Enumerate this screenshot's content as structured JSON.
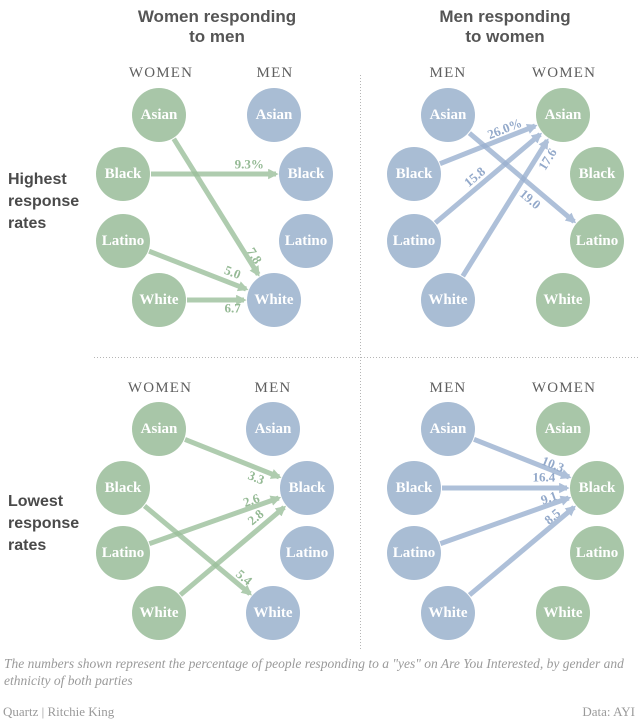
{
  "page": {
    "titles": [
      {
        "lines": [
          "Women responding",
          "to men"
        ]
      },
      {
        "lines": [
          "Men responding",
          "to women"
        ]
      }
    ],
    "row_labels": [
      {
        "lines": [
          "Highest",
          "response",
          "rates"
        ]
      },
      {
        "lines": [
          "Lowest",
          "response",
          "rates"
        ]
      }
    ],
    "footnote": "The numbers shown represent the percentage of people responding to a \"yes\" on Are You Interested, by gender and ethnicity of both parties",
    "credit_left": "Quartz | Ritchie King",
    "credit_right": "Data: AYI"
  },
  "ethnicities": [
    "Asian",
    "Black",
    "Latino",
    "White"
  ],
  "colors": {
    "women_circle": "#a8c6a8",
    "men_circle": "#a9bdd4",
    "women_arrow": "#9cc09c",
    "men_arrow": "#9bb1d0",
    "women_value_text": "#95ba95",
    "men_value_text": "#93a9ca",
    "circle_text": "#ffffff",
    "title_text": "#555555",
    "row_label_text": "#4a4a4a",
    "column_header_text": "#5f5f5f",
    "footnote_text": "#9a9a9a",
    "divider": "#b5b5b5"
  },
  "chart_data": [
    {
      "type": "flow",
      "quadrant": "highest-response-rates-women-to-men",
      "left_column": "WOMEN",
      "right_column": "MEN",
      "left_group": "women",
      "right_group": "men",
      "flows": [
        {
          "from": "Asian",
          "to": "White",
          "label": "7.8"
        },
        {
          "from": "Black",
          "to": "Black",
          "label": "9.3%"
        },
        {
          "from": "Latino",
          "to": "White",
          "label": "5.0"
        },
        {
          "from": "White",
          "to": "White",
          "label": "6.7"
        }
      ]
    },
    {
      "type": "flow",
      "quadrant": "highest-response-rates-men-to-women",
      "left_column": "MEN",
      "right_column": "WOMEN",
      "left_group": "men",
      "right_group": "women",
      "flows": [
        {
          "from": "Asian",
          "to": "Latino",
          "label": "19.0"
        },
        {
          "from": "Black",
          "to": "Asian",
          "label": "26.0%"
        },
        {
          "from": "Latino",
          "to": "Asian",
          "label": "15.8"
        },
        {
          "from": "White",
          "to": "Asian",
          "label": "17.6"
        }
      ]
    },
    {
      "type": "flow",
      "quadrant": "lowest-response-rates-women-to-men",
      "left_column": "WOMEN",
      "right_column": "MEN",
      "left_group": "women",
      "right_group": "men",
      "flows": [
        {
          "from": "Asian",
          "to": "Black",
          "label": "3.3"
        },
        {
          "from": "Black",
          "to": "White",
          "label": "5.4"
        },
        {
          "from": "Latino",
          "to": "Black",
          "label": "2.6"
        },
        {
          "from": "White",
          "to": "Black",
          "label": "2.8"
        }
      ]
    },
    {
      "type": "flow",
      "quadrant": "lowest-response-rates-men-to-women",
      "left_column": "MEN",
      "right_column": "WOMEN",
      "left_group": "men",
      "right_group": "women",
      "flows": [
        {
          "from": "Asian",
          "to": "Black",
          "label": "10.3"
        },
        {
          "from": "Black",
          "to": "Black",
          "label": "16.4"
        },
        {
          "from": "Latino",
          "to": "Black",
          "label": "9.1"
        },
        {
          "from": "White",
          "to": "Black",
          "label": "8.5"
        }
      ]
    }
  ]
}
